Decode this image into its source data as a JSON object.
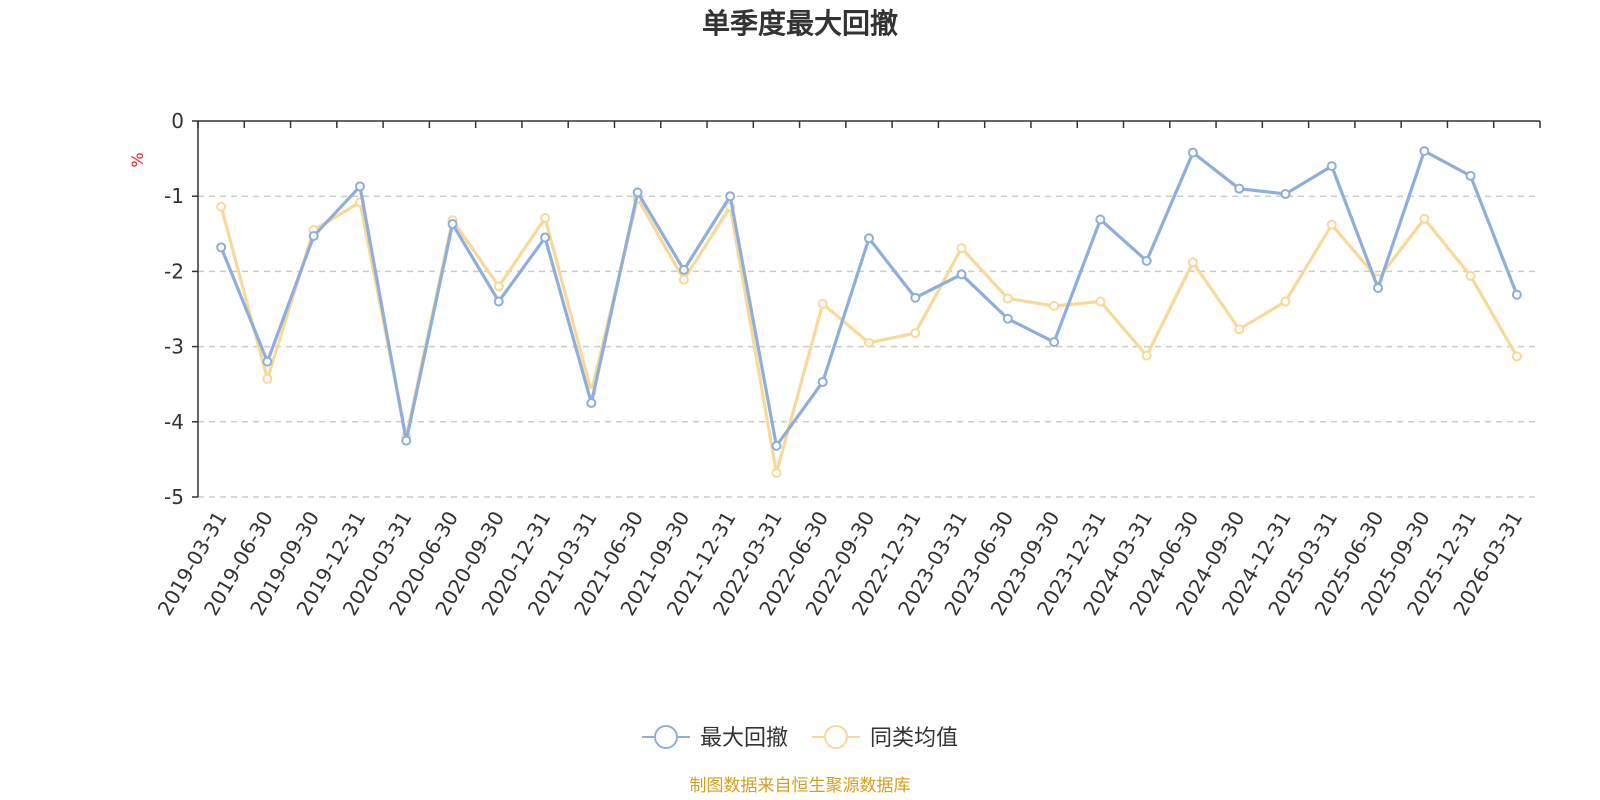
{
  "chart_data": {
    "type": "line",
    "title": "单季度最大回撤",
    "ylabel": "%",
    "ylim": [
      -5,
      0
    ],
    "yticks": [
      0,
      -1,
      -2,
      -3,
      -4,
      -5
    ],
    "grid": true,
    "legend_position": "bottom",
    "categories": [
      "2019-03-31",
      "2019-06-30",
      "2019-09-30",
      "2019-12-31",
      "2020-03-31",
      "2020-06-30",
      "2020-09-30",
      "2020-12-31",
      "2021-03-31",
      "2021-06-30",
      "2021-09-30",
      "2021-12-31",
      "2022-03-31",
      "2022-06-30",
      "2022-09-30",
      "2022-12-31",
      "2023-03-31",
      "2023-06-30",
      "2023-09-30",
      "2023-12-31",
      "2024-03-31",
      "2024-06-30",
      "2024-09-30",
      "2024-12-31",
      "2025-03-31",
      "2025-06-30",
      "2025-09-30",
      "2025-12-31",
      "2026-03-31"
    ],
    "series": [
      {
        "name": "最大回撤",
        "color": "#8eaedb",
        "values": [
          -1.68,
          -3.2,
          -1.53,
          -0.87,
          -4.25,
          -1.37,
          -2.4,
          -1.55,
          -3.75,
          -0.95,
          -1.98,
          -1.0,
          -4.32,
          -3.47,
          -1.56,
          -2.35,
          -2.04,
          -2.63,
          -2.94,
          -1.31,
          -1.86,
          -0.42,
          -0.9,
          -0.97,
          -0.6,
          -2.22,
          -0.4,
          -0.73,
          -2.31
        ]
      },
      {
        "name": "同类均值",
        "color": "#f9d99a",
        "values": [
          -1.14,
          -3.43,
          -1.45,
          -1.08,
          -4.2,
          -1.32,
          -2.2,
          -1.29,
          -3.6,
          -1.03,
          -2.11,
          -1.14,
          -4.68,
          -2.43,
          -2.95,
          -2.82,
          -1.69,
          -2.36,
          -2.46,
          -2.4,
          -3.12,
          -1.88,
          -2.77,
          -2.4,
          -1.38,
          -2.1,
          -1.3,
          -2.06,
          -3.13
        ]
      }
    ]
  },
  "source_text": "制图数据来自恒生聚源数据库",
  "colors": {
    "axis": "#333333",
    "grid": "#cccccc",
    "unit": "#e02020",
    "source": "#d4a020"
  }
}
